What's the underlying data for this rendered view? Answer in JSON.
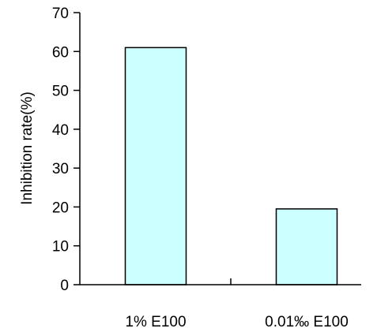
{
  "chart_data": {
    "type": "bar",
    "categories": [
      "1% E100",
      "0.01‰ E100"
    ],
    "values": [
      61,
      19.5
    ],
    "xlabel": "",
    "ylabel": "Inhibition rate(%)",
    "ylim": [
      0,
      70
    ],
    "yticks": [
      0,
      10,
      20,
      30,
      40,
      50,
      60,
      70
    ],
    "grid": false,
    "legend": "none",
    "colors": {
      "bar_fill": "#ccffff",
      "bar_stroke": "#000000",
      "axis": "#000000"
    }
  }
}
